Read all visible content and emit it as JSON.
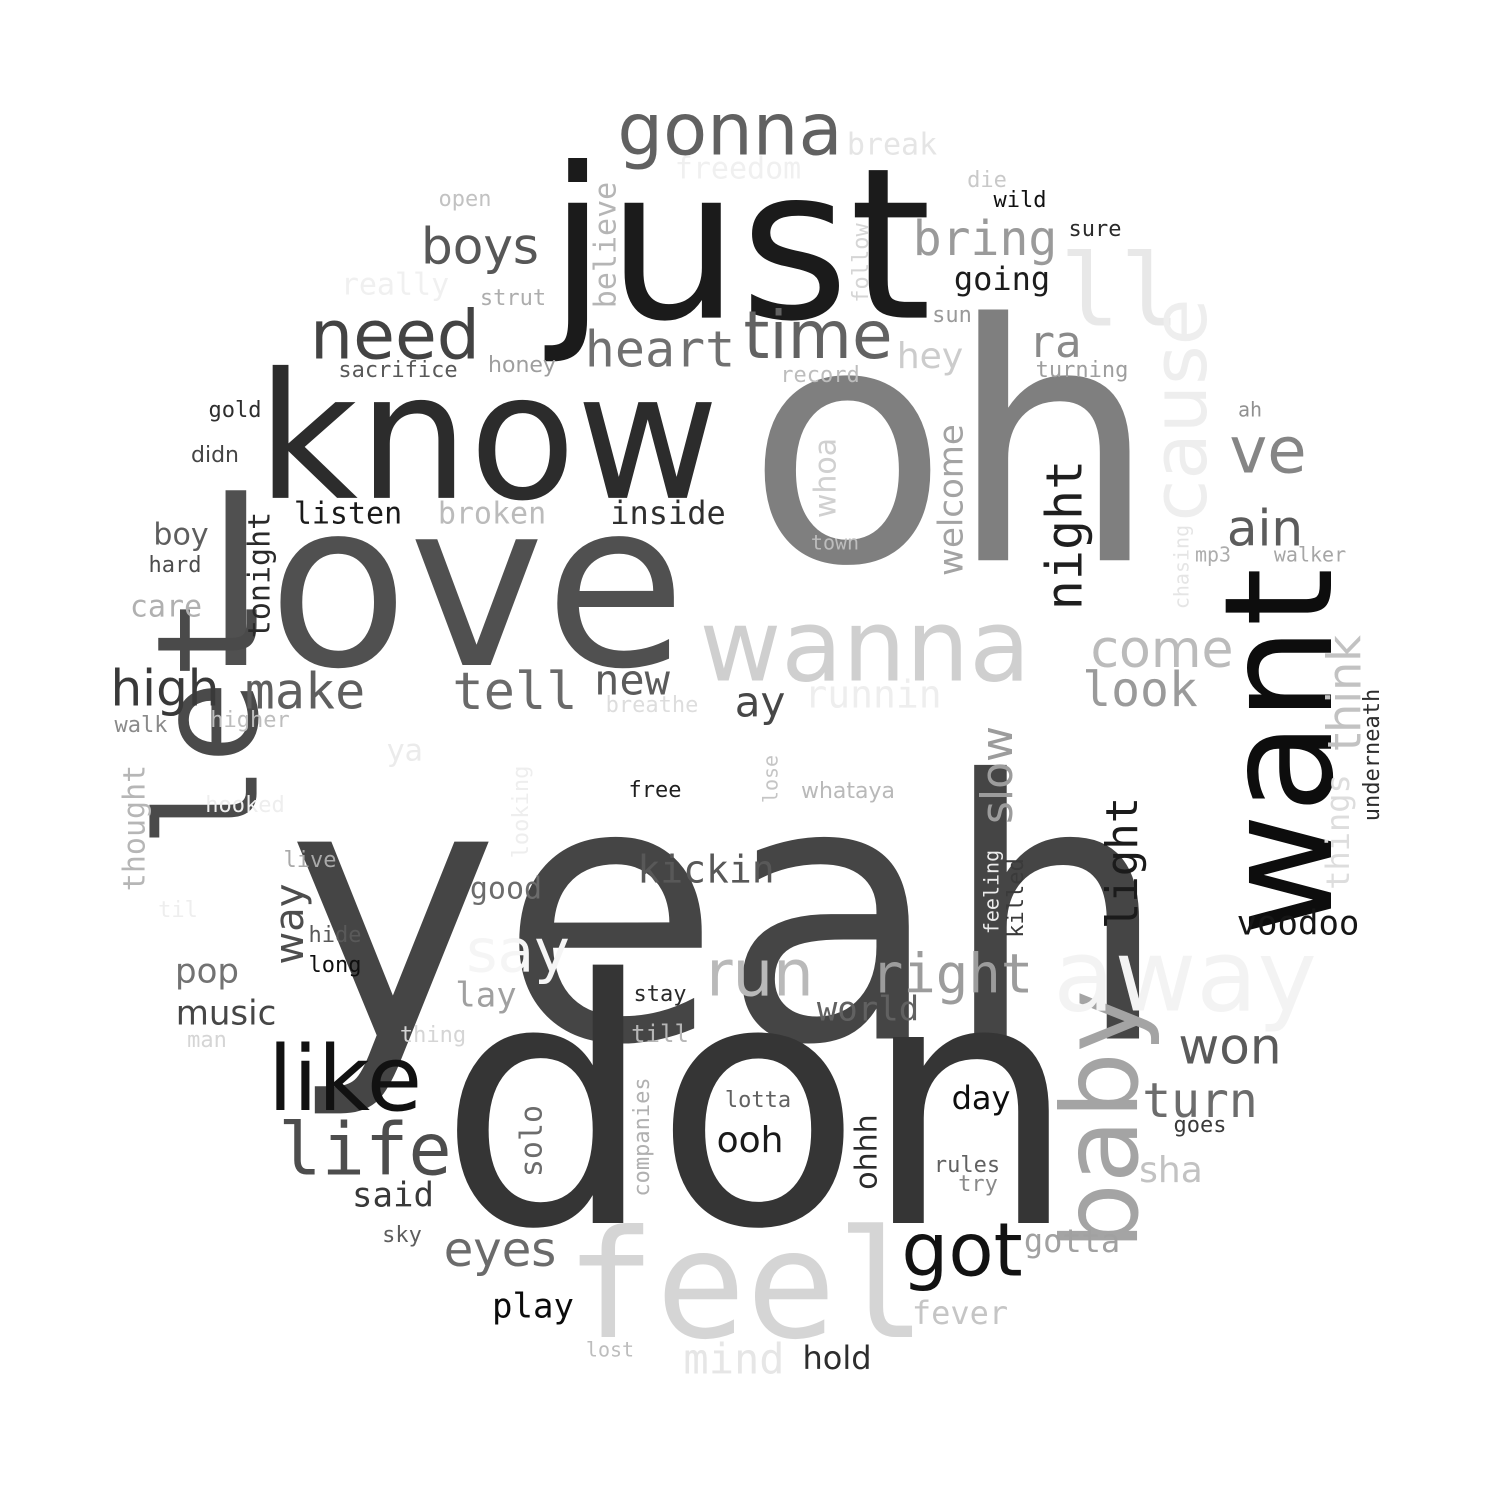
{
  "words": [
    {
      "text": "yeah",
      "color": "#454545"
    },
    {
      "text": "oh",
      "color": "#7f7f7f"
    },
    {
      "text": "don",
      "color": "#353535"
    },
    {
      "text": "love",
      "color": "#505050"
    },
    {
      "text": "just",
      "color": "#1b1b1b"
    },
    {
      "text": "know",
      "color": "#2c2c2c"
    },
    {
      "text": "want",
      "color": "#0d0d0d"
    },
    {
      "text": "let",
      "color": "#4a4a4a"
    },
    {
      "text": "feel",
      "color": "#d5d5d5"
    },
    {
      "text": "wanna",
      "color": "#cfcfcf"
    },
    {
      "text": "baby",
      "color": "#a4a4a4"
    },
    {
      "text": "away",
      "color": "#f3f3f3"
    },
    {
      "text": "ll",
      "color": "#e8e8e8"
    },
    {
      "text": "gonna",
      "color": "#616161"
    },
    {
      "text": "need",
      "color": "#434343"
    },
    {
      "text": "time",
      "color": "#626262"
    },
    {
      "text": "like",
      "color": "#111111"
    },
    {
      "text": "life",
      "color": "#4d4d4d"
    },
    {
      "text": "got",
      "color": "#121212"
    },
    {
      "text": "cause",
      "color": "#eeeeee"
    },
    {
      "text": "heart",
      "color": "#707070"
    },
    {
      "text": "bring",
      "color": "#9a9a9a"
    },
    {
      "text": "boys",
      "color": "#575757"
    },
    {
      "text": "ve",
      "color": "#858585"
    },
    {
      "text": "ain",
      "color": "#5c5c5c"
    },
    {
      "text": "night",
      "color": "#1f1f1f"
    },
    {
      "text": "come",
      "color": "#bbbbbb"
    },
    {
      "text": "look",
      "color": "#9a9a9a"
    },
    {
      "text": "think",
      "color": "#c2c2c2"
    },
    {
      "text": "make",
      "color": "#5f5f5f"
    },
    {
      "text": "tell",
      "color": "#6a6a6a"
    },
    {
      "text": "high",
      "color": "#393939"
    },
    {
      "text": "new",
      "color": "#5b5b5b"
    },
    {
      "text": "run",
      "color": "#b9b9b9"
    },
    {
      "text": "right",
      "color": "#9c9c9c"
    },
    {
      "text": "say",
      "color": "#f5f5f5"
    },
    {
      "text": "won",
      "color": "#5a5a5a"
    },
    {
      "text": "turn",
      "color": "#6c6c6c"
    },
    {
      "text": "eyes",
      "color": "#6b6b6b"
    },
    {
      "text": "slow",
      "color": "#9c9c9c"
    },
    {
      "text": "light",
      "color": "#1b1b1b"
    },
    {
      "text": "ra",
      "color": "#8a8a8a"
    },
    {
      "text": "hey",
      "color": "#cccccc"
    },
    {
      "text": "ay",
      "color": "#474747"
    },
    {
      "text": "runnin",
      "color": "#eeeeee"
    },
    {
      "text": "kickin",
      "color": "#585858"
    },
    {
      "text": "way",
      "color": "#4d4d4d"
    },
    {
      "text": "tonight",
      "color": "#2a2a2a"
    },
    {
      "text": "welcome",
      "color": "#a3a3a3"
    },
    {
      "text": "going",
      "color": "#1c1c1c"
    },
    {
      "text": "voodoo",
      "color": "#161616"
    },
    {
      "text": "world",
      "color": "#616161"
    },
    {
      "text": "things",
      "color": "#dddddd"
    },
    {
      "text": "ooh",
      "color": "#1a1a1a"
    },
    {
      "text": "play",
      "color": "#0b0b0b"
    },
    {
      "text": "pop",
      "color": "#727272"
    },
    {
      "text": "music",
      "color": "#464646"
    },
    {
      "text": "sha",
      "color": "#c2c2c2"
    },
    {
      "text": "fever",
      "color": "#c5c5c5"
    },
    {
      "text": "mind",
      "color": "#e6e6e6"
    },
    {
      "text": "gotta",
      "color": "#a1a1a1"
    },
    {
      "text": "day",
      "color": "#0d0d0d"
    },
    {
      "text": "said",
      "color": "#393939"
    },
    {
      "text": "hold",
      "color": "#2d2d2d"
    },
    {
      "text": "lay",
      "color": "#a0a0a0"
    },
    {
      "text": "good",
      "color": "#6c6c6c"
    },
    {
      "text": "listen",
      "color": "#1a1a1a"
    },
    {
      "text": "broken",
      "color": "#bbbbbb"
    },
    {
      "text": "inside",
      "color": "#2f2f2f"
    },
    {
      "text": "boy",
      "color": "#5e5e5e"
    },
    {
      "text": "care",
      "color": "#b0b0b0"
    },
    {
      "text": "thought",
      "color": "#b6b6b6"
    },
    {
      "text": "believe",
      "color": "#b5b5b5"
    },
    {
      "text": "whoa",
      "color": "#d0d0d0"
    },
    {
      "text": "solo",
      "color": "#6c6c6c"
    },
    {
      "text": "ohhh",
      "color": "#2b2b2b"
    },
    {
      "text": "break",
      "color": "#e5e5e5"
    },
    {
      "text": "freedom",
      "color": "#f0f0f0"
    },
    {
      "text": "really",
      "color": "#f0f0f0"
    },
    {
      "text": "ya",
      "color": "#ebebeb"
    },
    {
      "text": "underneath",
      "color": "#2d2d2d"
    },
    {
      "text": "killed",
      "color": "#3a3a3a"
    },
    {
      "text": "follow",
      "color": "#d5d5d5"
    },
    {
      "text": "strut",
      "color": "#adadad"
    },
    {
      "text": "sacrifice",
      "color": "#595959"
    },
    {
      "text": "honey",
      "color": "#9e9e9e"
    },
    {
      "text": "record",
      "color": "#bdbdbd"
    },
    {
      "text": "turning",
      "color": "#9e9e9e"
    },
    {
      "text": "sun",
      "color": "#999999"
    },
    {
      "text": "open",
      "color": "#c2c2c2"
    },
    {
      "text": "die",
      "color": "#c9c9c9"
    },
    {
      "text": "wild",
      "color": "#111111"
    },
    {
      "text": "sure",
      "color": "#2a2a2a"
    },
    {
      "text": "gold",
      "color": "#2e2e2e"
    },
    {
      "text": "didn",
      "color": "#454545"
    },
    {
      "text": "hard",
      "color": "#4d4d4d"
    },
    {
      "text": "walk",
      "color": "#8a8a8a"
    },
    {
      "text": "higher",
      "color": "#bdbdbd"
    },
    {
      "text": "hooked",
      "color": "#eeeeee"
    },
    {
      "text": "live",
      "color": "#a9a9a9"
    },
    {
      "text": "til",
      "color": "#eeeeee"
    },
    {
      "text": "hide",
      "color": "#595959"
    },
    {
      "text": "long",
      "color": "#0e0e0e"
    },
    {
      "text": "man",
      "color": "#d5d5d5"
    },
    {
      "text": "thing",
      "color": "#d5d5d5"
    },
    {
      "text": "till",
      "color": "#b6b6b6"
    },
    {
      "text": "stay",
      "color": "#2a2a2a"
    },
    {
      "text": "free",
      "color": "#1f1f1f"
    },
    {
      "text": "lose",
      "color": "#c5c5c5"
    },
    {
      "text": "whataya",
      "color": "#b9b9b9"
    },
    {
      "text": "breathe",
      "color": "#dddddd"
    },
    {
      "text": "looking",
      "color": "#eeeeee"
    },
    {
      "text": "town",
      "color": "#bdbdbd"
    },
    {
      "text": "ah",
      "color": "#909090"
    },
    {
      "text": "mp3",
      "color": "#adadad"
    },
    {
      "text": "walker",
      "color": "#a6a6a6"
    },
    {
      "text": "chasing",
      "color": "#e5e5e5"
    },
    {
      "text": "feeling",
      "color": "#ebebeb"
    },
    {
      "text": "companies",
      "color": "#b0b0b0"
    },
    {
      "text": "lotta",
      "color": "#616161"
    },
    {
      "text": "rules",
      "color": "#616161"
    },
    {
      "text": "try",
      "color": "#8a8a8a"
    },
    {
      "text": "goes",
      "color": "#3a3a3a"
    },
    {
      "text": "sky",
      "color": "#5e5e5e"
    },
    {
      "text": "lost",
      "color": "#bdbdbd"
    }
  ]
}
